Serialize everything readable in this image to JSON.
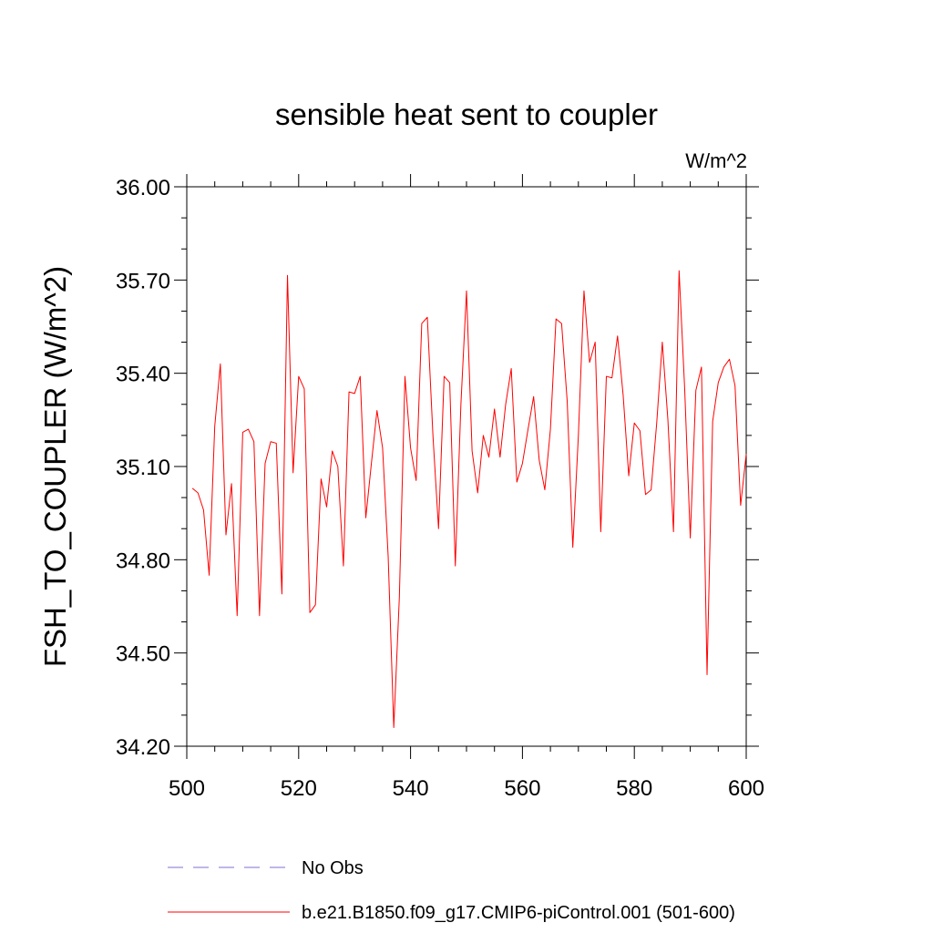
{
  "chart_data": {
    "type": "line",
    "title": "sensible heat sent to coupler",
    "units": "W/m^2",
    "ylabel": "FSH_TO_COUPLER  (W/m^2)",
    "xlabel": "",
    "xlim": [
      500,
      600
    ],
    "ylim": [
      34.2,
      36.0
    ],
    "xticks": [
      500,
      520,
      540,
      560,
      580,
      600
    ],
    "xtick_labels": [
      "500",
      "520",
      "540",
      "560",
      "580",
      "600"
    ],
    "yticks": [
      34.2,
      34.5,
      34.8,
      35.1,
      35.4,
      35.7,
      36.0
    ],
    "ytick_labels": [
      "34.20",
      "34.50",
      "34.80",
      "35.10",
      "35.40",
      "35.70",
      "36.00"
    ],
    "grid": false,
    "legend_placement": "bottom",
    "series": [
      {
        "name": "No Obs",
        "color": "#7b6fd6",
        "style": "dashed",
        "x": [],
        "values": []
      },
      {
        "name": "b.e21.B1850.f09_g17.CMIP6-piControl.001 (501-600)",
        "color": "#ff0000",
        "style": "solid",
        "x": [
          501,
          502,
          503,
          504,
          505,
          506,
          507,
          508,
          509,
          510,
          511,
          512,
          513,
          514,
          515,
          516,
          517,
          518,
          519,
          520,
          521,
          522,
          523,
          524,
          525,
          526,
          527,
          528,
          529,
          530,
          531,
          532,
          533,
          534,
          535,
          536,
          537,
          538,
          539,
          540,
          541,
          542,
          543,
          544,
          545,
          546,
          547,
          548,
          549,
          550,
          551,
          552,
          553,
          554,
          555,
          556,
          557,
          558,
          559,
          560,
          561,
          562,
          563,
          564,
          565,
          566,
          567,
          568,
          569,
          570,
          571,
          572,
          573,
          574,
          575,
          576,
          577,
          578,
          579,
          580,
          581,
          582,
          583,
          584,
          585,
          586,
          587,
          588,
          589,
          590,
          591,
          592,
          593,
          594,
          595,
          596,
          597,
          598,
          599,
          600
        ],
        "values": [
          35.03,
          35.015,
          34.96,
          34.75,
          35.23,
          35.43,
          34.88,
          35.045,
          34.62,
          35.21,
          35.22,
          35.18,
          34.62,
          35.11,
          35.18,
          35.175,
          34.69,
          35.715,
          35.08,
          35.39,
          35.35,
          34.63,
          34.655,
          35.06,
          34.97,
          35.15,
          35.1,
          34.78,
          35.34,
          35.335,
          35.39,
          34.935,
          35.11,
          35.28,
          35.16,
          34.81,
          34.26,
          34.68,
          35.39,
          35.16,
          35.055,
          35.56,
          35.58,
          35.2,
          34.9,
          35.39,
          35.37,
          34.78,
          35.3,
          35.665,
          35.15,
          35.015,
          35.2,
          35.13,
          35.285,
          35.13,
          35.3,
          35.415,
          35.05,
          35.11,
          35.22,
          35.325,
          35.12,
          35.025,
          35.22,
          35.575,
          35.56,
          35.31,
          34.84,
          35.2,
          35.665,
          35.435,
          35.5,
          34.89,
          35.39,
          35.385,
          35.52,
          35.33,
          35.07,
          35.24,
          35.215,
          35.01,
          35.025,
          35.24,
          35.5,
          35.25,
          34.89,
          35.73,
          35.35,
          34.87,
          35.345,
          35.42,
          34.43,
          35.245,
          35.37,
          35.42,
          35.445,
          35.36,
          34.975,
          35.14
        ]
      }
    ]
  }
}
